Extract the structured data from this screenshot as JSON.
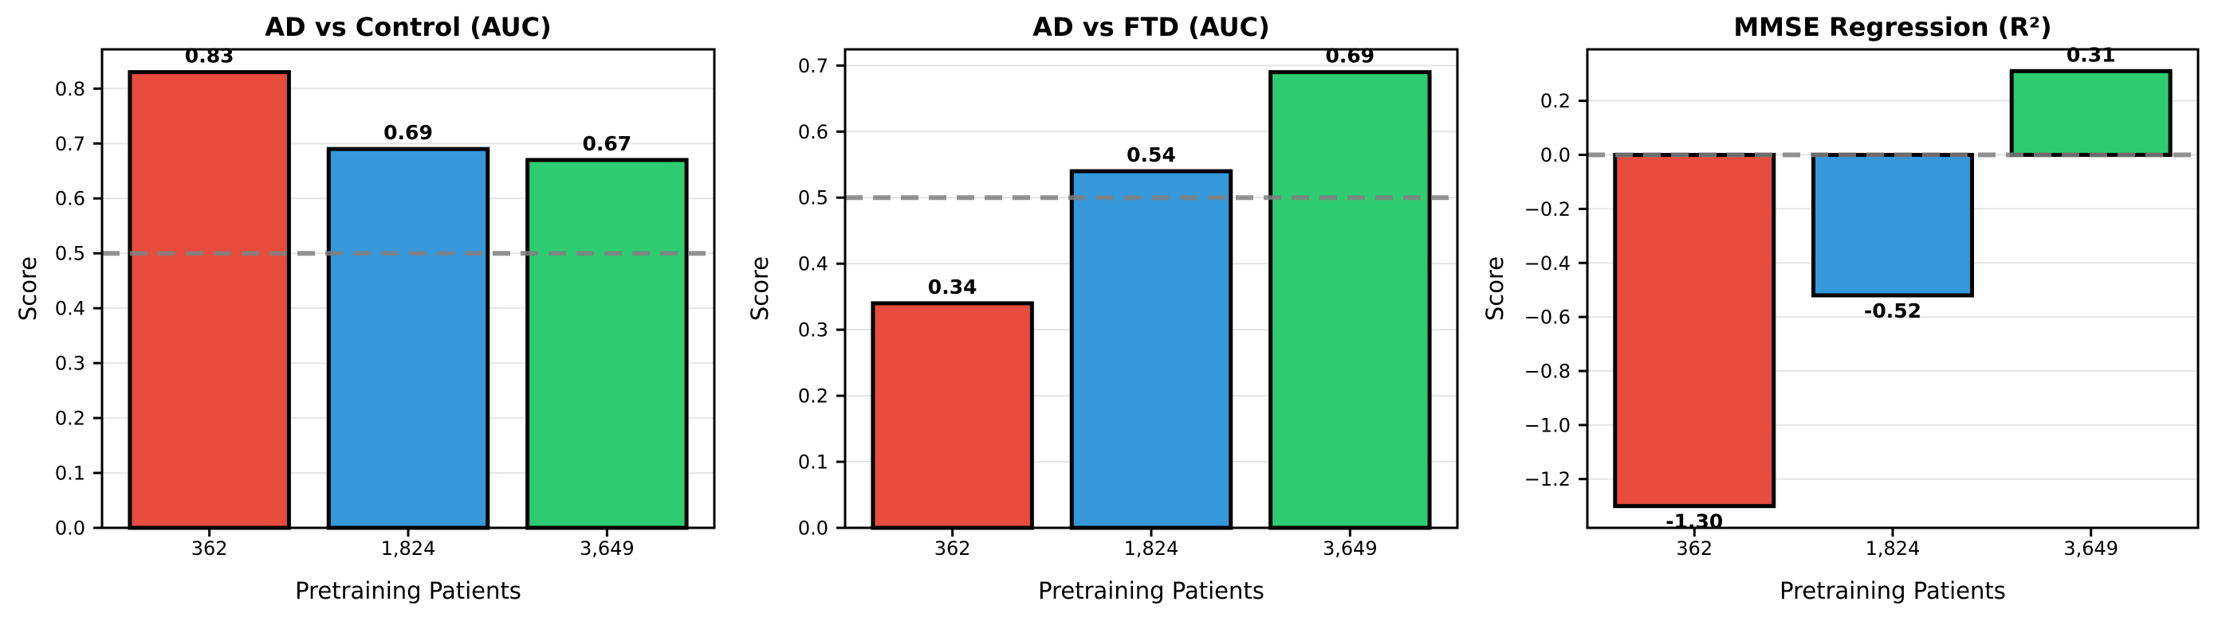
{
  "figure": {
    "background": "#ffffff",
    "description": "Three bar-chart subplots showing model performance versus number of pretraining patients"
  },
  "palette": {
    "bar_red": "#e74c3c",
    "bar_blue": "#3498db",
    "bar_green": "#2ecc71",
    "bar_edge": "#000000",
    "grid_line": "#e5e5e5",
    "reference_line": "#808080",
    "spine": "#000000",
    "text": "#000000"
  },
  "chart_data": [
    {
      "type": "bar",
      "title": "AD vs Control (AUC)",
      "xlabel": "Pretraining Patients",
      "ylabel": "Score",
      "categories": [
        "362",
        "1,824",
        "3,649"
      ],
      "values": [
        0.83,
        0.69,
        0.67
      ],
      "value_labels": [
        "0.83",
        "0.69",
        "0.67"
      ],
      "bar_colors": [
        "#e74c3c",
        "#3498db",
        "#2ecc71"
      ],
      "ylim": [
        0,
        0.8715
      ],
      "yticks": [
        {
          "v": 0.0,
          "label": "0.0"
        },
        {
          "v": 0.1,
          "label": "0.1"
        },
        {
          "v": 0.2,
          "label": "0.2"
        },
        {
          "v": 0.3,
          "label": "0.3"
        },
        {
          "v": 0.4,
          "label": "0.4"
        },
        {
          "v": 0.5,
          "label": "0.5"
        },
        {
          "v": 0.6,
          "label": "0.6"
        },
        {
          "v": 0.7,
          "label": "0.7"
        },
        {
          "v": 0.8,
          "label": "0.8"
        }
      ],
      "ref_line": 0.5,
      "grid": true,
      "legend": null
    },
    {
      "type": "bar",
      "title": "AD vs FTD (AUC)",
      "xlabel": "Pretraining Patients",
      "ylabel": "Score",
      "categories": [
        "362",
        "1,824",
        "3,649"
      ],
      "values": [
        0.34,
        0.54,
        0.69
      ],
      "value_labels": [
        "0.34",
        "0.54",
        "0.69"
      ],
      "bar_colors": [
        "#e74c3c",
        "#3498db",
        "#2ecc71"
      ],
      "ylim": [
        0,
        0.7245
      ],
      "yticks": [
        {
          "v": 0.0,
          "label": "0.0"
        },
        {
          "v": 0.1,
          "label": "0.1"
        },
        {
          "v": 0.2,
          "label": "0.2"
        },
        {
          "v": 0.3,
          "label": "0.3"
        },
        {
          "v": 0.4,
          "label": "0.4"
        },
        {
          "v": 0.5,
          "label": "0.5"
        },
        {
          "v": 0.6,
          "label": "0.6"
        },
        {
          "v": 0.7,
          "label": "0.7"
        }
      ],
      "ref_line": 0.5,
      "grid": true,
      "legend": null
    },
    {
      "type": "bar",
      "title": "MMSE Regression (R²)",
      "xlabel": "Pretraining Patients",
      "ylabel": "Score",
      "categories": [
        "362",
        "1,824",
        "3,649"
      ],
      "values": [
        -1.3,
        -0.52,
        0.31
      ],
      "value_labels": [
        "-1.30",
        "-0.52",
        "0.31"
      ],
      "bar_colors": [
        "#e74c3c",
        "#3498db",
        "#2ecc71"
      ],
      "ylim": [
        -1.3805,
        0.3905
      ],
      "yticks": [
        {
          "v": 0.2,
          "label": "0.2"
        },
        {
          "v": 0.0,
          "label": "0.0"
        },
        {
          "v": -0.2,
          "label": "−0.2"
        },
        {
          "v": -0.4,
          "label": "−0.4"
        },
        {
          "v": -0.6,
          "label": "−0.6"
        },
        {
          "v": -0.8,
          "label": "−0.8"
        },
        {
          "v": -1.0,
          "label": "−1.0"
        },
        {
          "v": -1.2,
          "label": "−1.2"
        }
      ],
      "ref_line": 0.0,
      "grid": true,
      "legend": null
    }
  ]
}
